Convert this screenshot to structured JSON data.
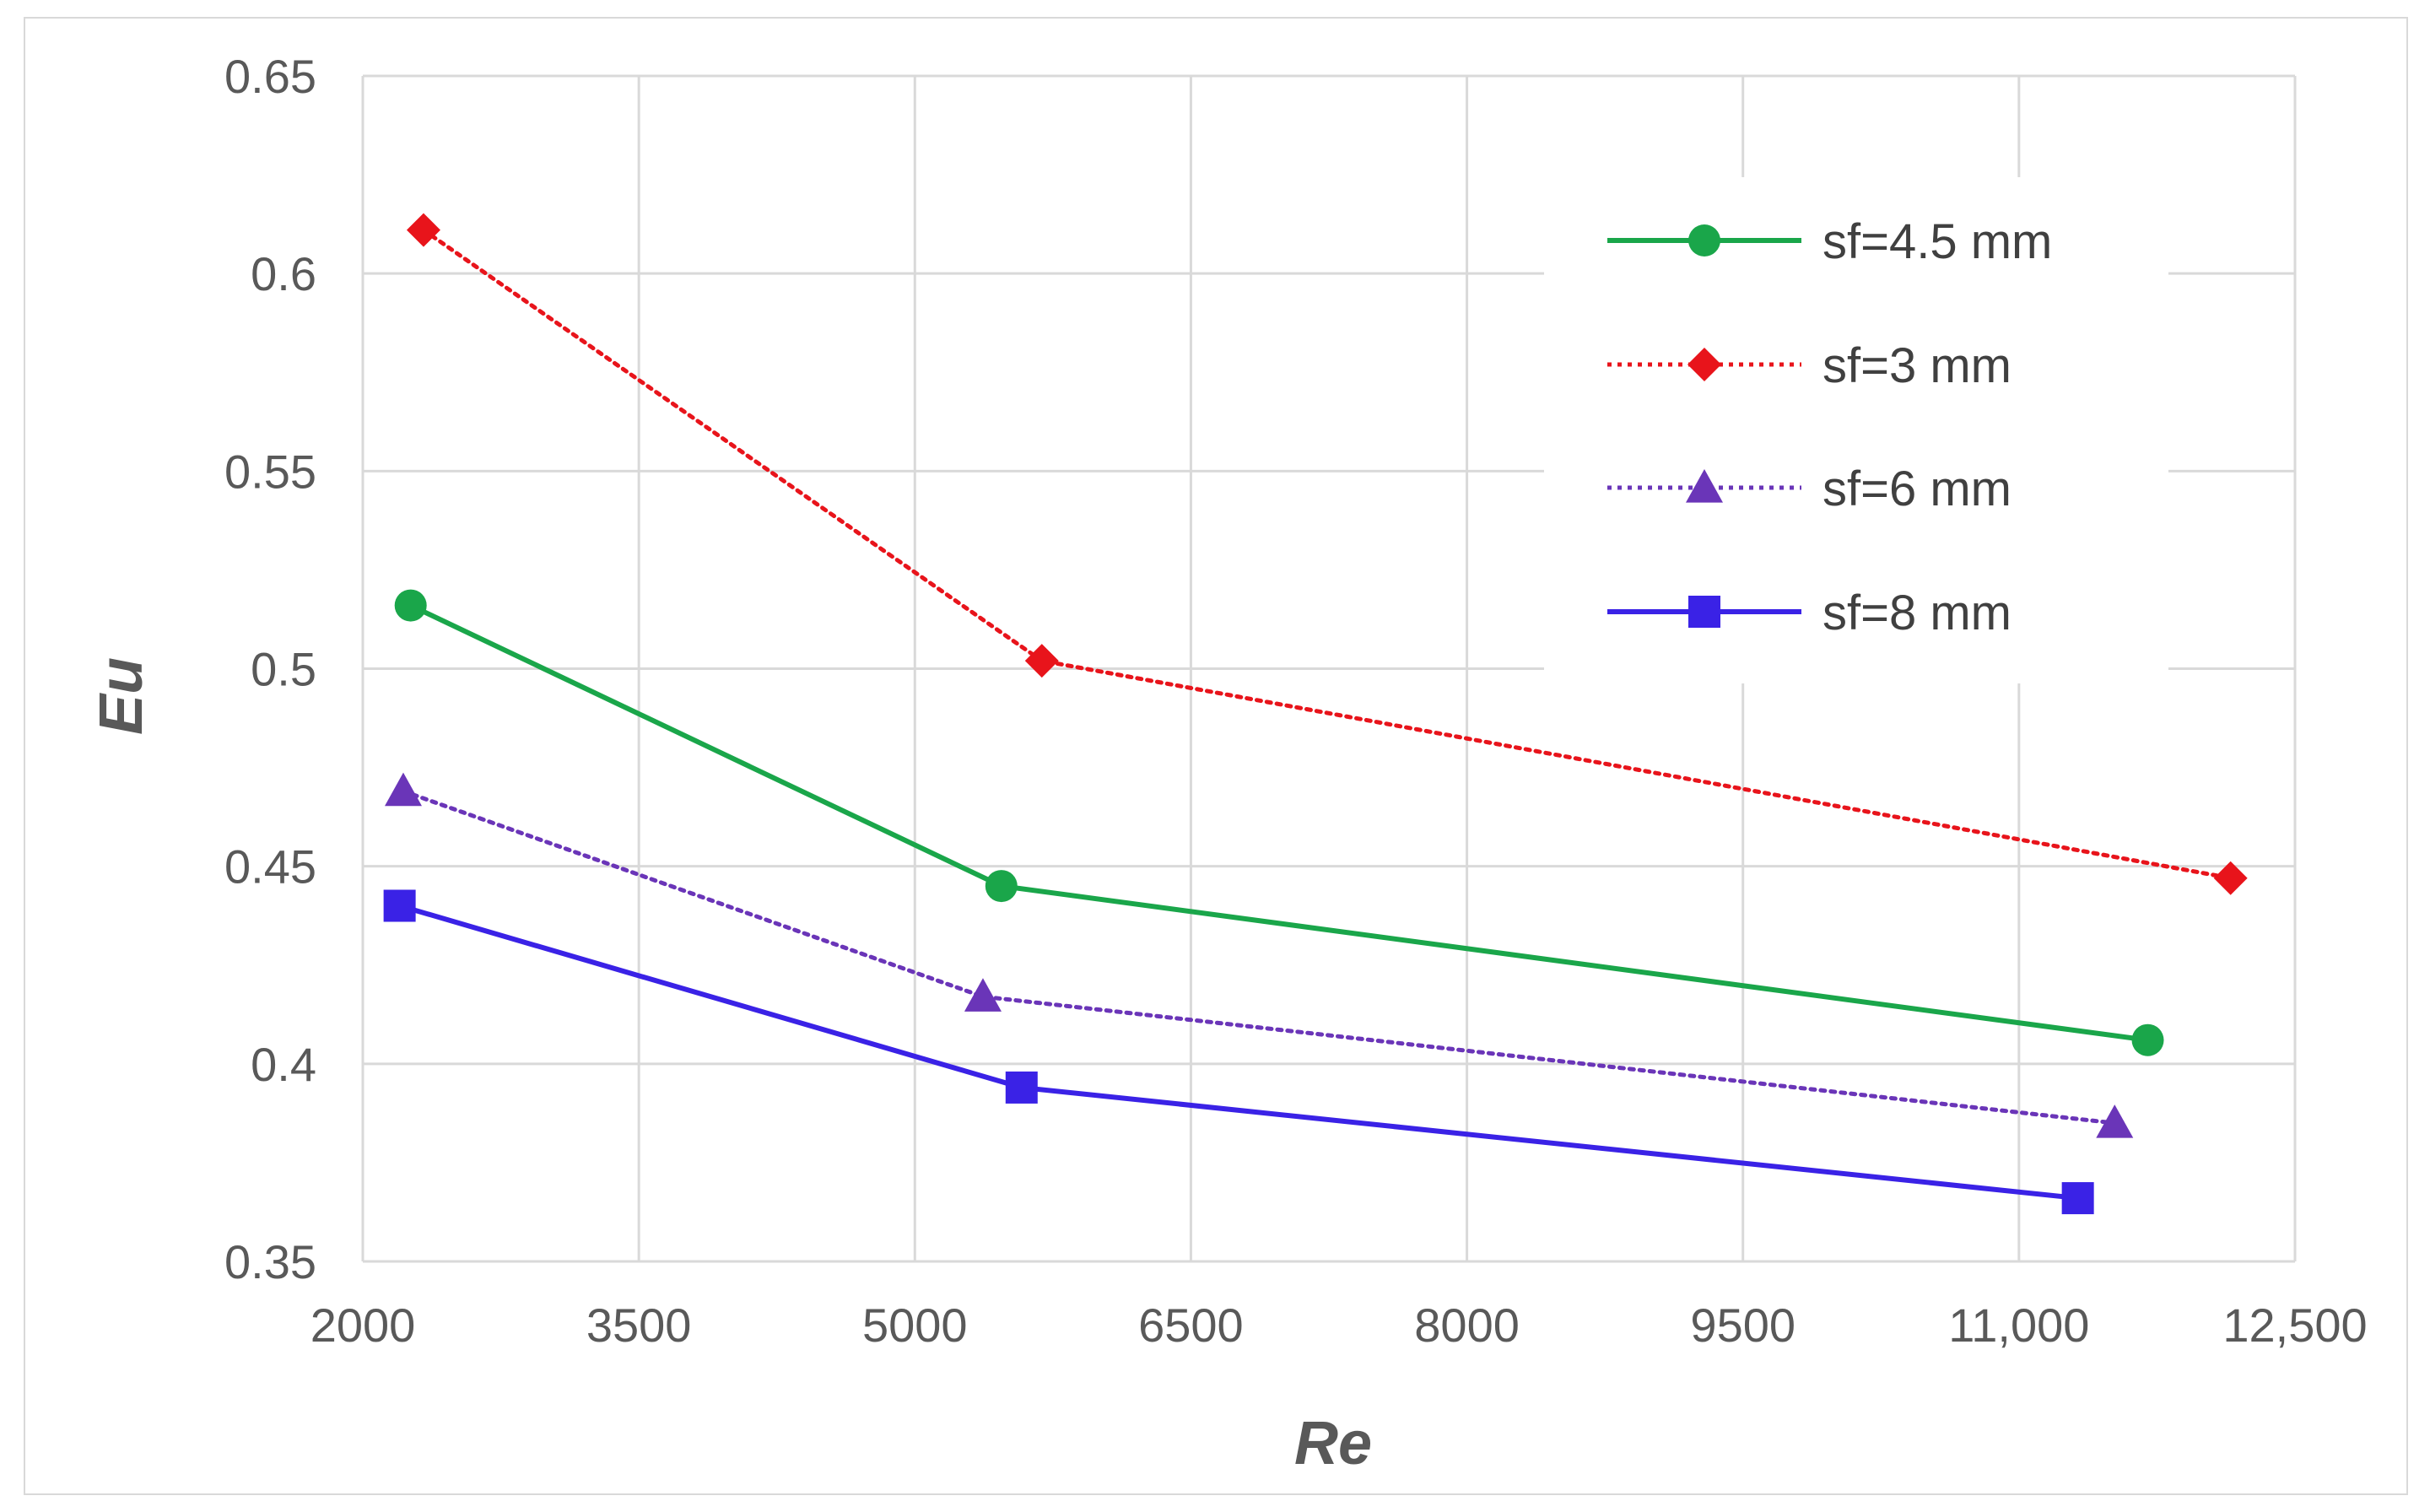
{
  "chart_data": {
    "type": "line",
    "title": "",
    "xlabel": "Re",
    "ylabel": "Eu",
    "xlim": [
      2000,
      12500
    ],
    "ylim": [
      0.35,
      0.65
    ],
    "grid": true,
    "legend_position": "top-right",
    "x_ticks": [
      2000,
      3500,
      5000,
      6500,
      8000,
      9500,
      11000,
      12500
    ],
    "x_tick_labels": [
      "2000",
      "3500",
      "5000",
      "6500",
      "8000",
      "9500",
      "11,000",
      "12,500"
    ],
    "y_ticks": [
      0.35,
      0.4,
      0.45,
      0.5,
      0.55,
      0.6,
      0.65
    ],
    "y_tick_labels": [
      "0.35",
      "0.4",
      "0.45",
      "0.5",
      "0.55",
      "0.6",
      "0.65"
    ],
    "series": [
      {
        "name": "sf=4.5 mm",
        "color": "#1aa64a",
        "line_style": "solid",
        "marker": "circle",
        "x": [
          2260,
          5470,
          11700
        ],
        "y": [
          0.516,
          0.445,
          0.406
        ]
      },
      {
        "name": "sf=3 mm",
        "color": "#e8141b",
        "line_style": "dotted",
        "marker": "diamond",
        "x": [
          2330,
          5690,
          12150
        ],
        "y": [
          0.611,
          0.502,
          0.447
        ]
      },
      {
        "name": "sf=6 mm",
        "color": "#6a35b8",
        "line_style": "dotted",
        "marker": "triangle",
        "x": [
          2220,
          5370,
          11520
        ],
        "y": [
          0.469,
          0.417,
          0.385
        ]
      },
      {
        "name": "sf=8 mm",
        "color": "#3a22e6",
        "line_style": "solid",
        "marker": "square",
        "x": [
          2200,
          5580,
          11320
        ],
        "y": [
          0.44,
          0.394,
          0.366
        ]
      }
    ]
  }
}
